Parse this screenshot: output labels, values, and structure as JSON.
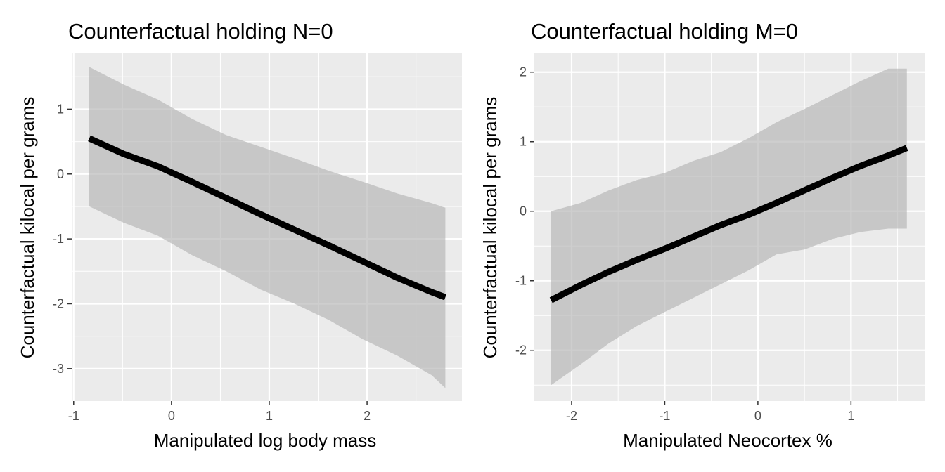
{
  "chart_data": [
    {
      "type": "line",
      "title": "Counterfactual holding N=0",
      "xlabel": "Manipulated log body mass",
      "ylabel": "Counterfactual kilocal per grams",
      "xlim": [
        -1.02,
        2.97
      ],
      "ylim": [
        -3.5,
        1.86
      ],
      "x_ticks": [
        -1,
        0,
        1,
        2
      ],
      "x_tick_labels": [
        "-1",
        "0",
        "1",
        "2"
      ],
      "y_ticks": [
        -3,
        -2,
        -1,
        0,
        1
      ],
      "y_tick_labels": [
        "-3",
        "-2",
        "-1",
        "0",
        "1"
      ],
      "grid": true,
      "series": [
        {
          "x": [
            -0.84,
            -0.49,
            -0.14,
            0.21,
            0.56,
            0.91,
            1.26,
            1.61,
            1.96,
            2.31,
            2.66,
            2.8
          ],
          "y": [
            0.55,
            0.31,
            0.12,
            -0.12,
            -0.37,
            -0.62,
            -0.86,
            -1.1,
            -1.35,
            -1.6,
            -1.82,
            -1.9
          ],
          "lower": [
            -0.5,
            -0.75,
            -0.95,
            -1.25,
            -1.5,
            -1.78,
            -2.0,
            -2.25,
            -2.55,
            -2.8,
            -3.1,
            -3.3
          ],
          "upper": [
            1.65,
            1.38,
            1.15,
            0.85,
            0.6,
            0.42,
            0.24,
            0.05,
            -0.12,
            -0.3,
            -0.45,
            -0.52
          ]
        }
      ]
    },
    {
      "type": "line",
      "title": "Counterfactual holding M=0",
      "xlabel": "Manipulated Neocortex %",
      "ylabel": "Counterfactual kilocal per grams",
      "xlim": [
        -2.4,
        1.79
      ],
      "ylim": [
        -2.73,
        2.27
      ],
      "x_ticks": [
        -2,
        -1,
        0,
        1
      ],
      "x_tick_labels": [
        "-2",
        "-1",
        "0",
        "1"
      ],
      "y_ticks": [
        -2,
        -1,
        0,
        1,
        2
      ],
      "y_tick_labels": [
        "-2",
        "-1",
        "0",
        "1",
        "2"
      ],
      "grid": true,
      "series": [
        {
          "x": [
            -2.22,
            -1.9,
            -1.6,
            -1.3,
            -1.0,
            -0.7,
            -0.4,
            -0.1,
            0.2,
            0.5,
            0.8,
            1.1,
            1.4,
            1.6
          ],
          "y": [
            -1.28,
            -1.06,
            -0.87,
            -0.7,
            -0.54,
            -0.37,
            -0.2,
            -0.05,
            0.12,
            0.3,
            0.48,
            0.65,
            0.8,
            0.91
          ],
          "lower": [
            -2.5,
            -2.2,
            -1.9,
            -1.65,
            -1.45,
            -1.25,
            -1.05,
            -0.85,
            -0.62,
            -0.55,
            -0.4,
            -0.3,
            -0.25,
            -0.25
          ],
          "upper": [
            0.0,
            0.12,
            0.3,
            0.45,
            0.55,
            0.72,
            0.85,
            1.05,
            1.28,
            1.47,
            1.67,
            1.87,
            2.05,
            2.05
          ]
        }
      ]
    }
  ]
}
